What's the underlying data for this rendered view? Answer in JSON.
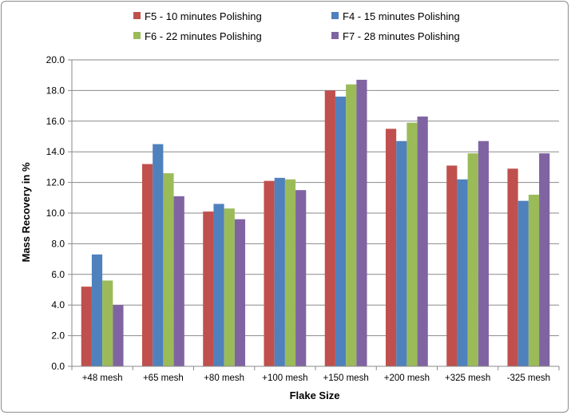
{
  "chart_data": {
    "type": "bar",
    "title": "",
    "xlabel": "Flake Size",
    "ylabel": "Mass Recovery in %",
    "ylim": [
      0,
      20
    ],
    "ytick_step": 2,
    "yticks": [
      "0.0",
      "2.0",
      "4.0",
      "6.0",
      "8.0",
      "10.0",
      "12.0",
      "14.0",
      "16.0",
      "18.0",
      "20.0"
    ],
    "grid": true,
    "legend_position": "top",
    "categories": [
      "+48 mesh",
      "+65 mesh",
      "+80 mesh",
      "+100 mesh",
      "+150 mesh",
      "+200 mesh",
      "+325 mesh",
      "-325 mesh"
    ],
    "series": [
      {
        "name": "F5 - 10 minutes Polishing",
        "color": "#c0504d",
        "values": [
          5.2,
          13.2,
          10.1,
          12.1,
          18.0,
          15.5,
          13.1,
          12.9
        ]
      },
      {
        "name": "F4 - 15 minutes Polishing",
        "color": "#4f81bd",
        "values": [
          7.3,
          14.5,
          10.6,
          12.3,
          17.6,
          14.7,
          12.2,
          10.8
        ]
      },
      {
        "name": "F6 - 22 minutes Polishing",
        "color": "#9bbb59",
        "values": [
          5.6,
          12.6,
          10.3,
          12.2,
          18.4,
          15.9,
          13.9,
          11.2
        ]
      },
      {
        "name": "F7 - 28 minutes Polishing",
        "color": "#8064a2",
        "values": [
          4.0,
          11.1,
          9.6,
          11.5,
          18.7,
          16.3,
          14.7,
          13.9
        ]
      }
    ]
  }
}
